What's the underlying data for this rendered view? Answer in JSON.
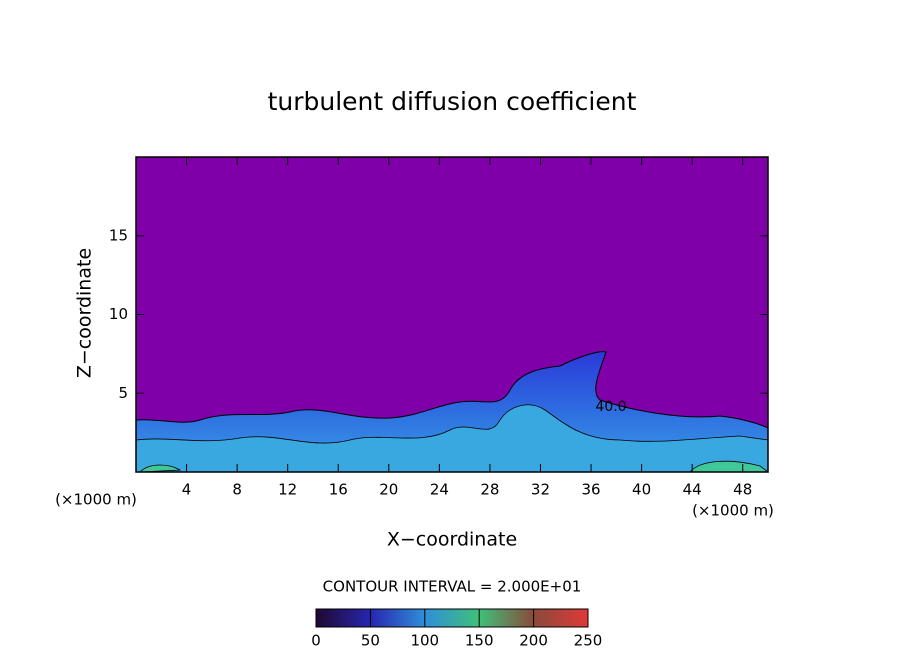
{
  "chart_data": {
    "type": "contour",
    "title": "turbulent diffusion coefficient",
    "x_label": "X−coordinate",
    "y_label": "Z−coordinate",
    "x_unit_label": "(×1000 m)",
    "x_unit_label_right": "(×1000 m)",
    "xlim": [
      0,
      50
    ],
    "xticks": [
      4,
      8,
      12,
      16,
      20,
      24,
      28,
      32,
      36,
      40,
      44,
      48
    ],
    "ylim": [
      0,
      20
    ],
    "yticks": [
      5,
      10,
      15
    ],
    "contour_label": "40.0",
    "contour_interval_text": "CONTOUR INTERVAL = 2.000E+01",
    "colorbar": {
      "lim": [
        0,
        250
      ],
      "ticks": [
        0,
        50,
        100,
        150,
        200,
        250
      ],
      "colors": [
        "#200830",
        "#2626b0",
        "#2f8fd8",
        "#3fc07a",
        "#8a4a3a",
        "#e03838"
      ]
    },
    "background_color": "#7f00a8"
  }
}
